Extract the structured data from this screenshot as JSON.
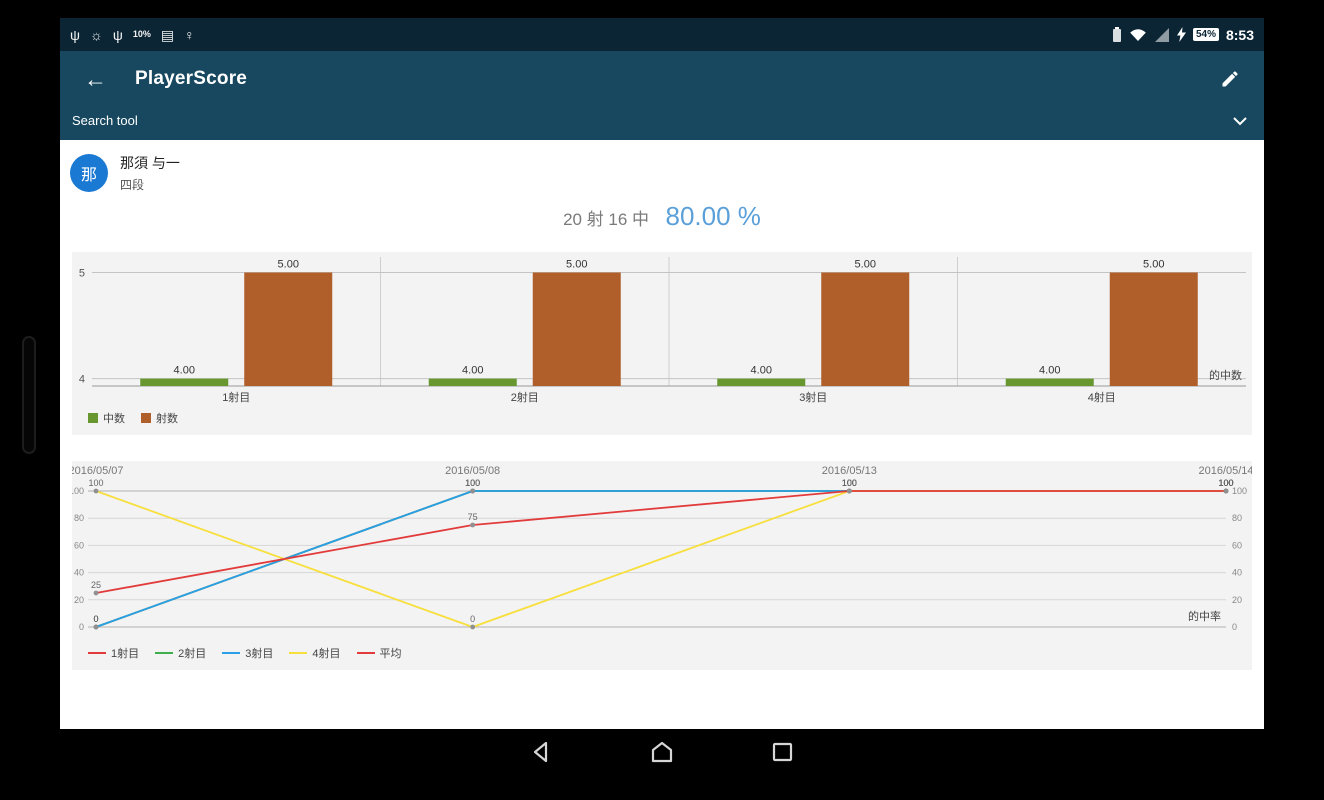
{
  "status_bar": {
    "time": "8:53",
    "battery_percent": "54%",
    "left_icons": [
      {
        "name": "usb-icon",
        "glyph": "ψ"
      },
      {
        "name": "flashlight-icon",
        "glyph": "☼"
      },
      {
        "name": "usb-debugging-icon",
        "glyph": "ψ"
      },
      {
        "name": "weather-icon",
        "glyph": "10%"
      },
      {
        "name": "clipboard-icon",
        "glyph": "▤"
      },
      {
        "name": "location-pin-icon",
        "glyph": "♀"
      }
    ],
    "right_icons": [
      "battery-notification-icon",
      "wifi-icon",
      "signal-icon",
      "charging-bolt-icon"
    ]
  },
  "app_bar": {
    "title": "PlayerScore"
  },
  "search_bar": {
    "label": "Search tool"
  },
  "player": {
    "avatar_text": "那",
    "name": "那須 与一",
    "rank": "四段"
  },
  "score_summary": {
    "shots_text": "20 射 16 中",
    "percent": "80.00 %"
  },
  "chart_data": [
    {
      "type": "bar",
      "categories": [
        "1射目",
        "2射目",
        "3射目",
        "4射目"
      ],
      "series": [
        {
          "name": "中数",
          "color": "#68972f",
          "values": [
            4,
            4,
            4,
            4
          ]
        },
        {
          "name": "射数",
          "color": "#b05f2b",
          "values": [
            5,
            5,
            5,
            5
          ]
        }
      ],
      "yticks": [
        4,
        5
      ],
      "ylim": [
        3.93,
        5.08
      ],
      "ylabel_right": "的中数",
      "legend_position": "bottom-left",
      "grid": true
    },
    {
      "type": "line",
      "x": [
        "2016/05/07",
        "2016/05/08",
        "2016/05/13",
        "2016/05/14"
      ],
      "series": [
        {
          "name": "1射目",
          "color": "#e23b3b",
          "values": [
            0,
            100,
            100,
            100
          ]
        },
        {
          "name": "2射目",
          "color": "#3faf4e",
          "values": [
            0,
            100,
            100,
            100
          ]
        },
        {
          "name": "3射目",
          "color": "#28a0e8",
          "values": [
            0,
            100,
            100,
            100
          ]
        },
        {
          "name": "4射目",
          "color": "#f7df3d",
          "values": [
            100,
            0,
            100,
            100
          ]
        },
        {
          "name": "平均",
          "color": "#e23b3b",
          "values": [
            25,
            75,
            100,
            100
          ]
        }
      ],
      "yticks": [
        0,
        20,
        40,
        60,
        80,
        100
      ],
      "ylim": [
        0,
        100
      ],
      "ylabel_right": "的中率",
      "legend_position": "bottom-left",
      "grid": true
    }
  ],
  "nav": {
    "buttons": [
      "back",
      "home",
      "recents"
    ]
  },
  "colors": {
    "status_bar_bg": "#0b2534",
    "app_bar_bg": "#17485f",
    "accent_blue": "#1a79d3",
    "percent_text": "#5ba0d8",
    "chart_bg": "#f3f3f3"
  }
}
